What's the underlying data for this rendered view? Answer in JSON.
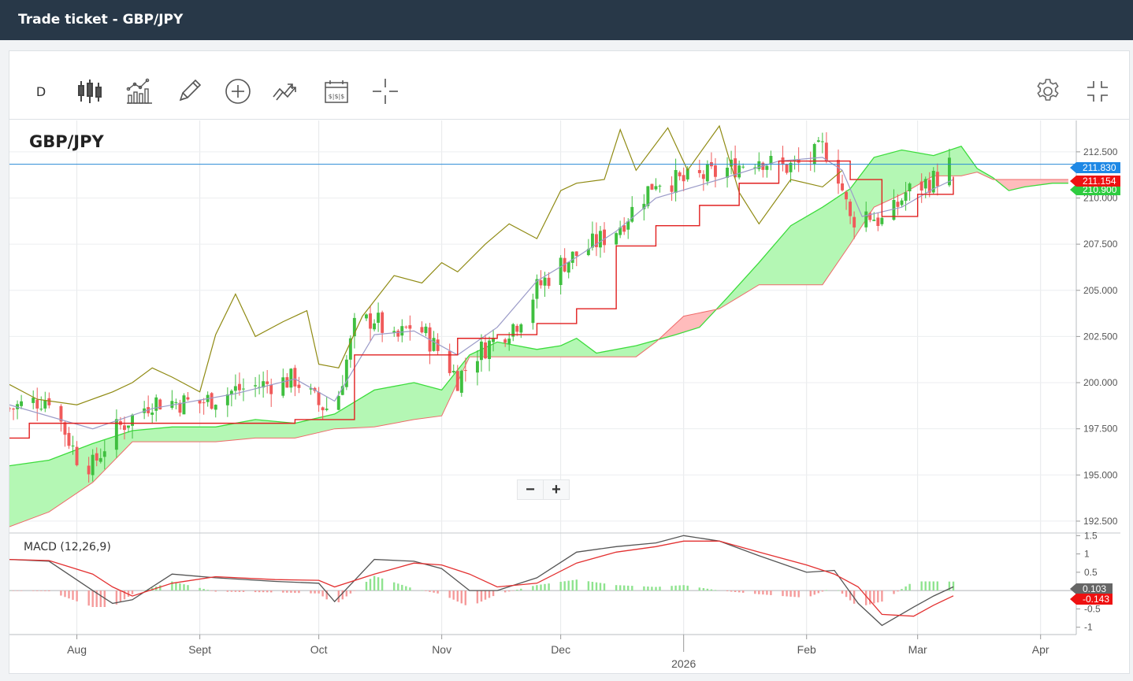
{
  "window": {
    "title": "Trade ticket - GBP/JPY"
  },
  "toolbar": {
    "interval_label": "D",
    "tools": [
      "candles-icon",
      "indicators-icon",
      "draw-icon",
      "add-icon",
      "compare-icon",
      "calendar-icon",
      "crosshair-icon"
    ],
    "right_tools": [
      "settings-icon",
      "fullscreen-icon"
    ]
  },
  "zoom": {
    "minus": "−",
    "plus": "+"
  },
  "colors": {
    "up": "#3fbf3f",
    "down": "#f05a5a",
    "cloud_bull": "#b4f7b4",
    "cloud_bear": "#ffbcbc",
    "base_line": "#e12020",
    "conversion_line": "#9b9bc8",
    "lagging_line": "#8f8a12",
    "price_line": "#2a8ad6",
    "macd": "#555555",
    "signal": "#e33030"
  },
  "chart_data": {
    "type": "candlestick",
    "symbol": "GBP/JPY",
    "price_axis": {
      "range": [
        191.9,
        214.2
      ],
      "ticks": [
        "192.500",
        "195.000",
        "197.500",
        "200.000",
        "202.500",
        "205.000",
        "207.500",
        "210.000",
        "212.500"
      ]
    },
    "time_axis": {
      "start_date": "2025-07-15",
      "end_date": "2026-04-10",
      "ticks": [
        {
          "label": "Aug",
          "date": "2025-08-01"
        },
        {
          "label": "Sept",
          "date": "2025-09-01"
        },
        {
          "label": "Oct",
          "date": "2025-10-01"
        },
        {
          "label": "Nov",
          "date": "2025-11-01"
        },
        {
          "label": "Dec",
          "date": "2025-12-01"
        },
        {
          "label": "2026",
          "date": "2026-01-01"
        },
        {
          "label": "Feb",
          "date": "2026-02-01"
        },
        {
          "label": "Mar",
          "date": "2026-03-01"
        },
        {
          "label": "Apr",
          "date": "2026-04-01"
        }
      ]
    },
    "price_labels": [
      {
        "value": 211.83,
        "text": "211.830",
        "color": "#1e88e5"
      },
      {
        "value": 211.154,
        "text": "211.154",
        "color": "#ee1111"
      },
      {
        "value": 210.9,
        "text": "210.900",
        "color": "#2ecc40"
      }
    ],
    "current_price": 211.83,
    "macd": {
      "label": "MACD (12,26,9)",
      "range": [
        -1.2,
        1.55
      ],
      "ticks": [
        "1.5",
        "1",
        "0.5",
        "0",
        "-0.5",
        "-1"
      ],
      "value_labels": [
        {
          "text": "0.103",
          "color": "#666666"
        },
        {
          "text": "-0.143",
          "color": "#ee1111"
        }
      ]
    },
    "close_anchors": [
      [
        "2025-07-15",
        198.6
      ],
      [
        "2025-07-25",
        199.2
      ],
      [
        "2025-08-01",
        196.0
      ],
      [
        "2025-08-05",
        195.5
      ],
      [
        "2025-08-10",
        197.3
      ],
      [
        "2025-08-20",
        199.0
      ],
      [
        "2025-09-01",
        198.9
      ],
      [
        "2025-09-10",
        199.6
      ],
      [
        "2025-09-25",
        200.2
      ],
      [
        "2025-10-01",
        198.8
      ],
      [
        "2025-10-05",
        198.5
      ],
      [
        "2025-10-10",
        203.0
      ],
      [
        "2025-10-15",
        203.5
      ],
      [
        "2025-10-20",
        202.2
      ],
      [
        "2025-10-25",
        203.3
      ],
      [
        "2025-11-01",
        201.5
      ],
      [
        "2025-11-05",
        200.2
      ],
      [
        "2025-11-10",
        201.6
      ],
      [
        "2025-11-20",
        203.3
      ],
      [
        "2025-11-25",
        205.1
      ],
      [
        "2025-12-01",
        206.4
      ],
      [
        "2025-12-10",
        207.6
      ],
      [
        "2025-12-15",
        208.3
      ],
      [
        "2025-12-20",
        209.6
      ],
      [
        "2025-12-25",
        211.0
      ],
      [
        "2026-01-01",
        210.9
      ],
      [
        "2026-01-10",
        211.4
      ],
      [
        "2026-01-20",
        212.2
      ],
      [
        "2026-01-25",
        211.6
      ],
      [
        "2026-02-01",
        211.9
      ],
      [
        "2026-02-05",
        212.7
      ],
      [
        "2026-02-08",
        212.1
      ],
      [
        "2026-02-12",
        208.8
      ],
      [
        "2026-02-16",
        209.2
      ],
      [
        "2026-02-21",
        208.6
      ],
      [
        "2026-02-26",
        210.3
      ],
      [
        "2026-03-01",
        210.6
      ],
      [
        "2026-03-06",
        211.1
      ],
      [
        "2026-03-09",
        211.83
      ]
    ],
    "cloud": {
      "span_a": [
        [
          "2025-07-15",
          195.5
        ],
        [
          "2025-07-25",
          195.8
        ],
        [
          "2025-08-05",
          196.7
        ],
        [
          "2025-08-15",
          197.4
        ],
        [
          "2025-08-25",
          197.6
        ],
        [
          "2025-09-05",
          197.6
        ],
        [
          "2025-09-15",
          198.0
        ],
        [
          "2025-09-25",
          197.8
        ],
        [
          "2025-10-05",
          198.3
        ],
        [
          "2025-10-15",
          199.6
        ],
        [
          "2025-10-25",
          200.0
        ],
        [
          "2025-11-01",
          199.6
        ],
        [
          "2025-11-08",
          201.5
        ],
        [
          "2025-11-15",
          202.2
        ],
        [
          "2025-11-25",
          201.8
        ],
        [
          "2025-12-01",
          202.0
        ],
        [
          "2025-12-05",
          202.4
        ],
        [
          "2025-12-10",
          201.6
        ],
        [
          "2025-12-20",
          202.0
        ],
        [
          "2025-12-30",
          202.6
        ],
        [
          "2026-01-05",
          203.0
        ],
        [
          "2026-01-12",
          204.6
        ],
        [
          "2026-01-20",
          206.5
        ],
        [
          "2026-01-28",
          208.5
        ],
        [
          "2026-02-05",
          209.5
        ],
        [
          "2026-02-12",
          210.5
        ],
        [
          "2026-02-18",
          212.2
        ],
        [
          "2026-02-25",
          212.6
        ],
        [
          "2026-03-05",
          212.3
        ],
        [
          "2026-03-12",
          212.8
        ],
        [
          "2026-03-16",
          211.6
        ],
        [
          "2026-03-20",
          211.1
        ],
        [
          "2026-03-24",
          210.4
        ],
        [
          "2026-03-28",
          210.6
        ],
        [
          "2026-04-04",
          210.8
        ],
        [
          "2026-04-08",
          210.8
        ]
      ],
      "span_b": [
        [
          "2025-07-15",
          192.2
        ],
        [
          "2025-07-25",
          193.0
        ],
        [
          "2025-08-05",
          194.6
        ],
        [
          "2025-08-15",
          196.8
        ],
        [
          "2025-08-25",
          196.8
        ],
        [
          "2025-09-05",
          196.8
        ],
        [
          "2025-09-15",
          197.0
        ],
        [
          "2025-09-25",
          197.0
        ],
        [
          "2025-10-05",
          197.5
        ],
        [
          "2025-10-15",
          197.6
        ],
        [
          "2025-10-25",
          198.0
        ],
        [
          "2025-11-01",
          198.2
        ],
        [
          "2025-11-08",
          201.4
        ],
        [
          "2025-11-15",
          201.4
        ],
        [
          "2025-11-25",
          201.4
        ],
        [
          "2025-12-01",
          201.4
        ],
        [
          "2025-12-10",
          201.4
        ],
        [
          "2025-12-20",
          201.4
        ],
        [
          "2025-12-25",
          202.2
        ],
        [
          "2026-01-01",
          203.6
        ],
        [
          "2026-01-10",
          204.0
        ],
        [
          "2026-01-20",
          205.3
        ],
        [
          "2026-01-28",
          205.3
        ],
        [
          "2026-02-05",
          205.3
        ],
        [
          "2026-02-12",
          207.5
        ],
        [
          "2026-02-18",
          209.5
        ],
        [
          "2026-02-25",
          210.2
        ],
        [
          "2026-03-05",
          211.2
        ],
        [
          "2026-03-12",
          211.2
        ],
        [
          "2026-03-16",
          211.4
        ],
        [
          "2026-03-20",
          211.0
        ],
        [
          "2026-03-24",
          211.0
        ],
        [
          "2026-03-28",
          211.0
        ],
        [
          "2026-04-04",
          211.0
        ],
        [
          "2026-04-08",
          211.0
        ]
      ]
    },
    "base_line": [
      [
        "2025-07-15",
        197.0
      ],
      [
        "2025-07-20",
        197.8
      ],
      [
        "2025-08-15",
        197.8
      ],
      [
        "2025-09-25",
        198.0
      ],
      [
        "2025-10-01",
        198.0
      ],
      [
        "2025-10-10",
        201.5
      ],
      [
        "2025-11-01",
        201.5
      ],
      [
        "2025-11-05",
        202.4
      ],
      [
        "2025-11-15",
        202.6
      ],
      [
        "2025-11-25",
        203.2
      ],
      [
        "2025-12-05",
        204.0
      ],
      [
        "2025-12-15",
        207.4
      ],
      [
        "2025-12-25",
        208.5
      ],
      [
        "2026-01-05",
        209.6
      ],
      [
        "2026-01-15",
        210.8
      ],
      [
        "2026-01-25",
        212.0
      ],
      [
        "2026-02-08",
        212.0
      ],
      [
        "2026-02-12",
        211.0
      ],
      [
        "2026-02-20",
        209.0
      ],
      [
        "2026-03-01",
        210.2
      ],
      [
        "2026-03-10",
        211.15
      ]
    ],
    "conversion_line": [
      [
        "2025-07-15",
        198.8
      ],
      [
        "2025-08-05",
        197.5
      ],
      [
        "2025-08-20",
        198.6
      ],
      [
        "2025-09-10",
        199.4
      ],
      [
        "2025-09-25",
        200.2
      ],
      [
        "2025-10-05",
        199.0
      ],
      [
        "2025-10-15",
        202.6
      ],
      [
        "2025-10-25",
        202.8
      ],
      [
        "2025-11-05",
        201.5
      ],
      [
        "2025-11-15",
        203.0
      ],
      [
        "2025-11-25",
        205.5
      ],
      [
        "2025-12-05",
        206.8
      ],
      [
        "2025-12-15",
        208.2
      ],
      [
        "2025-12-25",
        210.0
      ],
      [
        "2026-01-10",
        211.0
      ],
      [
        "2026-01-25",
        212.0
      ],
      [
        "2026-02-05",
        212.2
      ],
      [
        "2026-02-10",
        211.5
      ],
      [
        "2026-02-15",
        209.0
      ],
      [
        "2026-02-25",
        209.5
      ],
      [
        "2026-03-05",
        210.5
      ],
      [
        "2026-03-10",
        211.0
      ]
    ],
    "lagging_line": [
      [
        "2025-07-15",
        199.9
      ],
      [
        "2025-07-22",
        199.1
      ],
      [
        "2025-08-01",
        198.8
      ],
      [
        "2025-08-10",
        199.5
      ],
      [
        "2025-08-15",
        200.0
      ],
      [
        "2025-08-20",
        200.8
      ],
      [
        "2025-08-25",
        200.3
      ],
      [
        "2025-09-01",
        199.5
      ],
      [
        "2025-09-05",
        202.6
      ],
      [
        "2025-09-10",
        204.8
      ],
      [
        "2025-09-15",
        202.5
      ],
      [
        "2025-09-22",
        203.3
      ],
      [
        "2025-09-28",
        203.9
      ],
      [
        "2025-10-01",
        201.0
      ],
      [
        "2025-10-06",
        200.8
      ],
      [
        "2025-10-12",
        203.6
      ],
      [
        "2025-10-20",
        205.8
      ],
      [
        "2025-10-27",
        205.4
      ],
      [
        "2025-11-01",
        206.5
      ],
      [
        "2025-11-05",
        206.0
      ],
      [
        "2025-11-12",
        207.5
      ],
      [
        "2025-11-18",
        208.6
      ],
      [
        "2025-11-25",
        207.8
      ],
      [
        "2025-12-01",
        210.4
      ],
      [
        "2025-12-05",
        210.8
      ],
      [
        "2025-12-12",
        211.0
      ],
      [
        "2025-12-16",
        213.7
      ],
      [
        "2025-12-20",
        211.5
      ],
      [
        "2025-12-28",
        213.8
      ],
      [
        "2026-01-02",
        211.5
      ],
      [
        "2026-01-10",
        213.9
      ],
      [
        "2026-01-15",
        210.3
      ],
      [
        "2026-01-20",
        208.6
      ],
      [
        "2026-01-28",
        211.0
      ],
      [
        "2026-02-05",
        210.6
      ],
      [
        "2026-02-10",
        211.5
      ]
    ],
    "macd_anchors": [
      [
        "2025-07-15",
        0.85,
        0.85
      ],
      [
        "2025-07-25",
        0.8,
        0.82
      ],
      [
        "2025-08-05",
        0.0,
        0.45
      ],
      [
        "2025-08-10",
        -0.35,
        0.1
      ],
      [
        "2025-08-15",
        -0.25,
        -0.15
      ],
      [
        "2025-08-25",
        0.45,
        0.2
      ],
      [
        "2025-09-05",
        0.35,
        0.38
      ],
      [
        "2025-09-20",
        0.25,
        0.3
      ],
      [
        "2025-10-01",
        0.2,
        0.28
      ],
      [
        "2025-10-05",
        -0.3,
        0.1
      ],
      [
        "2025-10-15",
        0.85,
        0.45
      ],
      [
        "2025-10-25",
        0.8,
        0.75
      ],
      [
        "2025-11-01",
        0.6,
        0.7
      ],
      [
        "2025-11-08",
        0.0,
        0.45
      ],
      [
        "2025-11-15",
        0.0,
        0.1
      ],
      [
        "2025-11-25",
        0.35,
        0.2
      ],
      [
        "2025-12-05",
        1.05,
        0.75
      ],
      [
        "2025-12-15",
        1.2,
        1.05
      ],
      [
        "2025-12-25",
        1.3,
        1.2
      ],
      [
        "2026-01-01",
        1.5,
        1.35
      ],
      [
        "2026-01-10",
        1.35,
        1.35
      ],
      [
        "2026-01-20",
        0.95,
        1.05
      ],
      [
        "2026-02-01",
        0.5,
        0.7
      ],
      [
        "2026-02-08",
        0.55,
        0.45
      ],
      [
        "2026-02-14",
        -0.35,
        0.1
      ],
      [
        "2026-02-20",
        -0.95,
        -0.65
      ],
      [
        "2026-02-28",
        -0.45,
        -0.7
      ],
      [
        "2026-03-05",
        -0.15,
        -0.4
      ],
      [
        "2026-03-10",
        0.103,
        -0.143
      ]
    ]
  }
}
